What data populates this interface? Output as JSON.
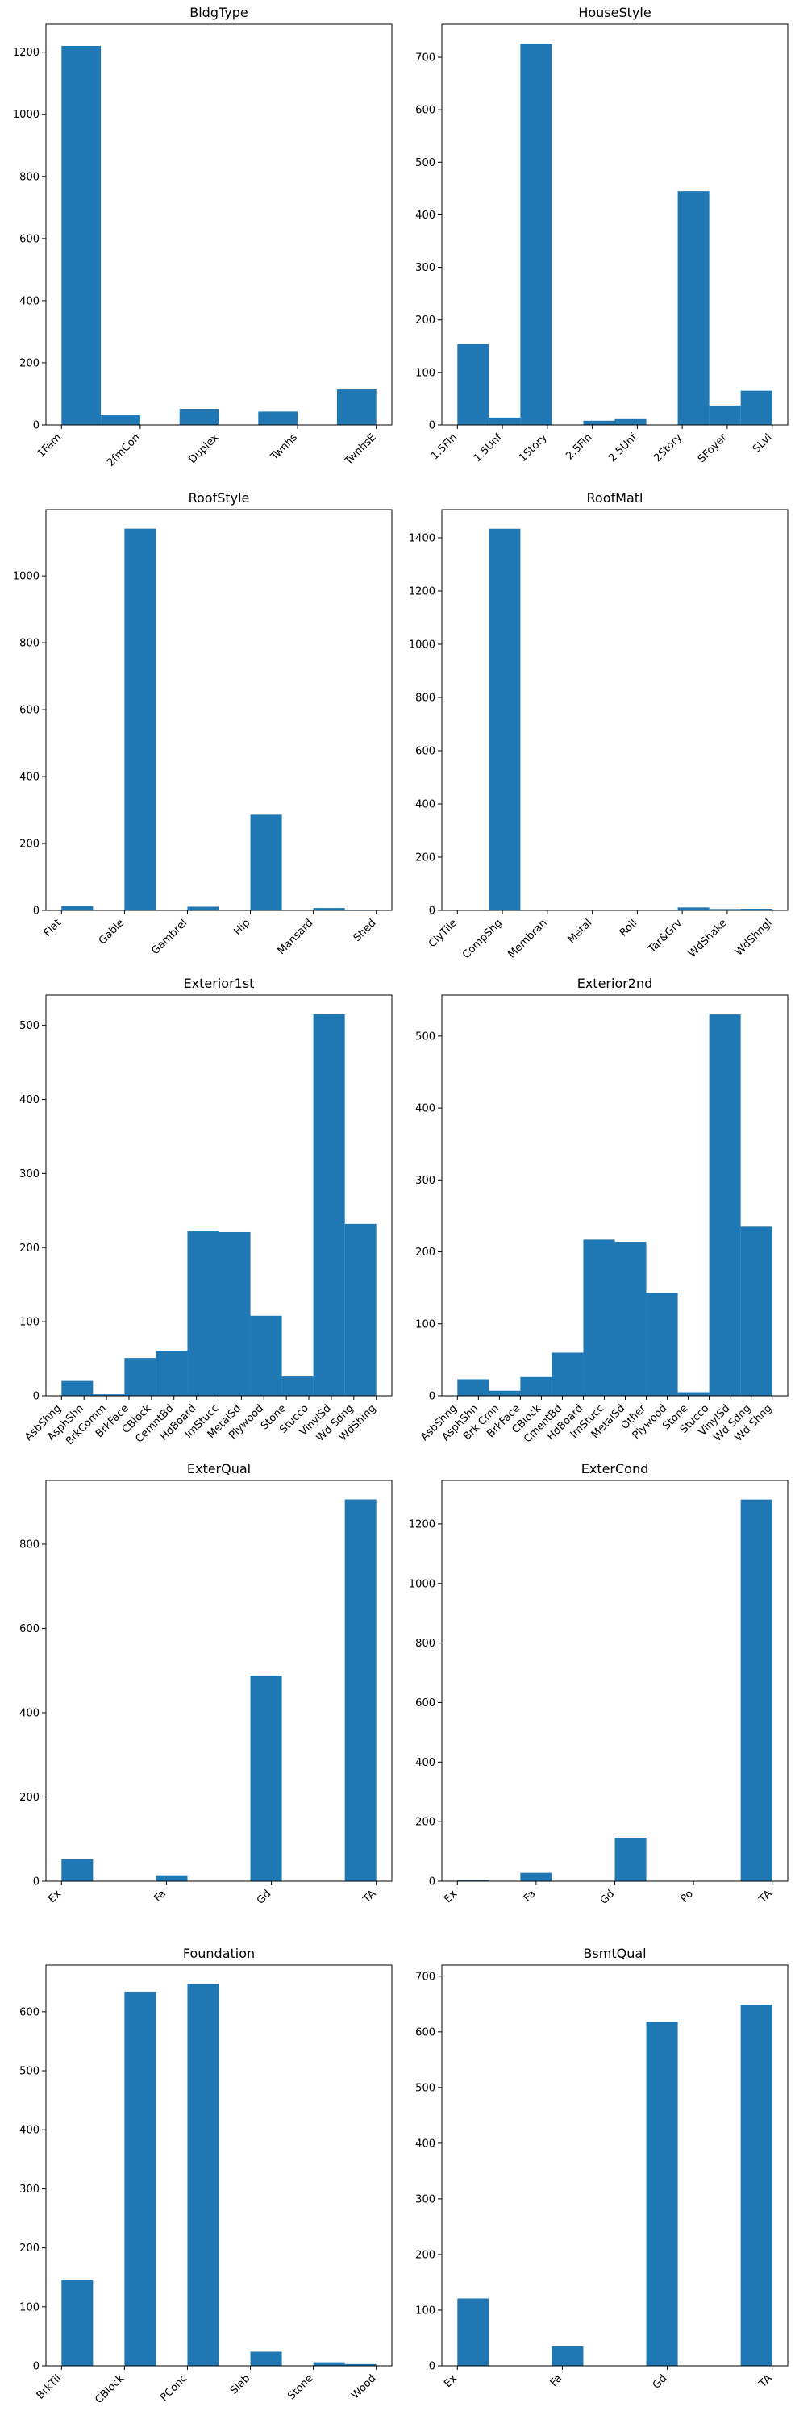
{
  "chart_data": [
    {
      "type": "bar",
      "title": "BldgType",
      "xlabel": "",
      "ylabel": "",
      "categories": [
        "1Fam",
        "2fmCon",
        "Duplex",
        "Twnhs",
        "TwnhsE"
      ],
      "bins": [
        {
          "count": 1220,
          "label": "1Fam"
        },
        {
          "count": 31,
          "label": "2fmCon"
        },
        {
          "count": 0,
          "label": ""
        },
        {
          "count": 52,
          "label": "Duplex"
        },
        {
          "count": 0,
          "label": ""
        },
        {
          "count": 43,
          "label": "Twnhs"
        },
        {
          "count": 0,
          "label": ""
        },
        {
          "count": 114,
          "label": "TwnhsE"
        }
      ],
      "ylim": [
        0,
        1290
      ],
      "yticks": [
        0,
        200,
        400,
        600,
        800,
        1000,
        1200
      ],
      "color": "#1f77b4"
    },
    {
      "type": "bar",
      "title": "HouseStyle",
      "xlabel": "",
      "ylabel": "",
      "categories": [
        "1.5Fin",
        "1.5Unf",
        "1Story",
        "2.5Fin",
        "2.5Unf",
        "2Story",
        "SFoyer",
        "SLvl"
      ],
      "bins": [
        {
          "count": 154,
          "label": "1.5Fin"
        },
        {
          "count": 14,
          "label": "1.5Unf"
        },
        {
          "count": 726,
          "label": "1Story"
        },
        {
          "count": 0,
          "label": ""
        },
        {
          "count": 8,
          "label": "2.5Fin"
        },
        {
          "count": 11,
          "label": "2.5Unf"
        },
        {
          "count": 0,
          "label": ""
        },
        {
          "count": 445,
          "label": "2Story"
        },
        {
          "count": 37,
          "label": "SFoyer"
        },
        {
          "count": 65,
          "label": "SLvl"
        }
      ],
      "ylim": [
        0,
        763
      ],
      "yticks": [
        0,
        100,
        200,
        300,
        400,
        500,
        600,
        700
      ],
      "color": "#1f77b4"
    },
    {
      "type": "bar",
      "title": "RoofStyle",
      "xlabel": "",
      "ylabel": "",
      "categories": [
        "Flat",
        "Gable",
        "Gambrel",
        "Hip",
        "Mansard",
        "Shed"
      ],
      "bins": [
        {
          "count": 13,
          "label": "Flat"
        },
        {
          "count": 0,
          "label": ""
        },
        {
          "count": 1141,
          "label": "Gable"
        },
        {
          "count": 0,
          "label": ""
        },
        {
          "count": 11,
          "label": "Gambrel"
        },
        {
          "count": 0,
          "label": ""
        },
        {
          "count": 286,
          "label": "Hip"
        },
        {
          "count": 0,
          "label": ""
        },
        {
          "count": 7,
          "label": "Mansard"
        },
        {
          "count": 2,
          "label": "Shed"
        }
      ],
      "ylim": [
        0,
        1198
      ],
      "yticks": [
        0,
        200,
        400,
        600,
        800,
        1000
      ],
      "color": "#1f77b4"
    },
    {
      "type": "bar",
      "title": "RoofMatl",
      "xlabel": "",
      "ylabel": "",
      "categories": [
        "ClyTile",
        "CompShg",
        "Membran",
        "Metal",
        "Roll",
        "Tar&Grv",
        "WdShake",
        "WdShngl"
      ],
      "bins": [
        {
          "count": 1,
          "label": "ClyTile"
        },
        {
          "count": 1434,
          "label": "CompShg"
        },
        {
          "count": 1,
          "label": "Membran"
        },
        {
          "count": 0,
          "label": ""
        },
        {
          "count": 1,
          "label": "Metal"
        },
        {
          "count": 1,
          "label": "Roll"
        },
        {
          "count": 0,
          "label": ""
        },
        {
          "count": 11,
          "label": "Tar&Grv"
        },
        {
          "count": 5,
          "label": "WdShake"
        },
        {
          "count": 6,
          "label": "WdShngl"
        }
      ],
      "ylim": [
        0,
        1506
      ],
      "yticks": [
        0,
        200,
        400,
        600,
        800,
        1000,
        1200,
        1400
      ],
      "color": "#1f77b4"
    },
    {
      "type": "bar",
      "title": "Exterior1st",
      "xlabel": "",
      "ylabel": "",
      "categories": [
        "AsbShng",
        "AsphShn",
        "BrkComm",
        "BrkFace",
        "CBlock",
        "CemntBd",
        "HdBoard",
        "ImStucc",
        "MetalSd",
        "Plywood",
        "Stone",
        "Stucco",
        "VinylSd",
        "Wd Sdng",
        "WdShing"
      ],
      "bins": [
        {
          "count": 20,
          "label": "AsbShng"
        },
        {
          "count": 2,
          "label": "AsphShn/BrkComm"
        },
        {
          "count": 51,
          "label": "BrkFace/CBlock"
        },
        {
          "count": 61,
          "label": "CemntBd"
        },
        {
          "count": 222,
          "label": "HdBoard/ImStucc"
        },
        {
          "count": 221,
          "label": "MetalSd"
        },
        {
          "count": 108,
          "label": "Plywood/Stone"
        },
        {
          "count": 26,
          "label": "Stucco"
        },
        {
          "count": 515,
          "label": "VinylSd"
        },
        {
          "count": 232,
          "label": "Wd Sdng/WdShing"
        }
      ],
      "ylim": [
        0,
        541
      ],
      "yticks": [
        0,
        100,
        200,
        300,
        400,
        500
      ],
      "color": "#1f77b4"
    },
    {
      "type": "bar",
      "title": "Exterior2nd",
      "xlabel": "",
      "ylabel": "",
      "categories": [
        "AsbShng",
        "AsphShn",
        "Brk Cmn",
        "BrkFace",
        "CBlock",
        "CmentBd",
        "HdBoard",
        "ImStucc",
        "MetalSd",
        "Other",
        "Plywood",
        "Stone",
        "Stucco",
        "VinylSd",
        "Wd Sdng",
        "Wd Shng"
      ],
      "bins": [
        {
          "count": 23,
          "label": "AsbShng"
        },
        {
          "count": 7,
          "label": "AsphShn/Brk Cmn"
        },
        {
          "count": 26,
          "label": "BrkFace/CBlock"
        },
        {
          "count": 60,
          "label": "CmentBd"
        },
        {
          "count": 217,
          "label": "HdBoard/ImStucc"
        },
        {
          "count": 214,
          "label": "MetalSd"
        },
        {
          "count": 143,
          "label": "Other/Plywood"
        },
        {
          "count": 5,
          "label": "Stone/Stucco"
        },
        {
          "count": 530,
          "label": "VinylSd"
        },
        {
          "count": 235,
          "label": "Wd Sdng/Wd Shng"
        }
      ],
      "ylim": [
        0,
        557
      ],
      "yticks": [
        0,
        100,
        200,
        300,
        400,
        500
      ],
      "color": "#1f77b4"
    },
    {
      "type": "bar",
      "title": "ExterQual",
      "xlabel": "",
      "ylabel": "",
      "categories": [
        "Ex",
        "Fa",
        "Gd",
        "TA"
      ],
      "bins": [
        {
          "count": 52,
          "label": "Ex"
        },
        {
          "count": 0,
          "label": ""
        },
        {
          "count": 0,
          "label": ""
        },
        {
          "count": 14,
          "label": "Fa"
        },
        {
          "count": 0,
          "label": ""
        },
        {
          "count": 0,
          "label": ""
        },
        {
          "count": 488,
          "label": "Gd"
        },
        {
          "count": 0,
          "label": ""
        },
        {
          "count": 0,
          "label": ""
        },
        {
          "count": 906,
          "label": "TA"
        }
      ],
      "ylim": [
        0,
        951
      ],
      "yticks": [
        0,
        200,
        400,
        600,
        800
      ],
      "color": "#1f77b4"
    },
    {
      "type": "bar",
      "title": "ExterCond",
      "xlabel": "",
      "ylabel": "",
      "categories": [
        "Ex",
        "Fa",
        "Gd",
        "Po",
        "TA"
      ],
      "bins": [
        {
          "count": 3,
          "label": "Ex"
        },
        {
          "count": 0,
          "label": ""
        },
        {
          "count": 28,
          "label": "Fa"
        },
        {
          "count": 0,
          "label": ""
        },
        {
          "count": 0,
          "label": ""
        },
        {
          "count": 146,
          "label": "Gd"
        },
        {
          "count": 0,
          "label": ""
        },
        {
          "count": 1,
          "label": "Po"
        },
        {
          "count": 0,
          "label": ""
        },
        {
          "count": 1282,
          "label": "TA"
        }
      ],
      "ylim": [
        0,
        1346
      ],
      "yticks": [
        0,
        200,
        400,
        600,
        800,
        1000,
        1200
      ],
      "color": "#1f77b4"
    },
    {
      "type": "bar",
      "title": "Foundation",
      "xlabel": "",
      "ylabel": "",
      "categories": [
        "BrkTil",
        "CBlock",
        "PConc",
        "Slab",
        "Stone",
        "Wood"
      ],
      "bins": [
        {
          "count": 146,
          "label": "BrkTil"
        },
        {
          "count": 0,
          "label": ""
        },
        {
          "count": 634,
          "label": "CBlock"
        },
        {
          "count": 0,
          "label": ""
        },
        {
          "count": 647,
          "label": "PConc"
        },
        {
          "count": 0,
          "label": ""
        },
        {
          "count": 24,
          "label": "Slab"
        },
        {
          "count": 0,
          "label": ""
        },
        {
          "count": 6,
          "label": "Stone"
        },
        {
          "count": 3,
          "label": "Wood"
        }
      ],
      "ylim": [
        0,
        679
      ],
      "yticks": [
        0,
        100,
        200,
        300,
        400,
        500,
        600
      ],
      "color": "#1f77b4"
    },
    {
      "type": "bar",
      "title": "BsmtQual",
      "xlabel": "",
      "ylabel": "",
      "categories": [
        "Ex",
        "Fa",
        "Gd",
        "TA"
      ],
      "bins": [
        {
          "count": 121,
          "label": "Ex"
        },
        {
          "count": 0,
          "label": ""
        },
        {
          "count": 0,
          "label": ""
        },
        {
          "count": 35,
          "label": "Fa"
        },
        {
          "count": 0,
          "label": ""
        },
        {
          "count": 0,
          "label": ""
        },
        {
          "count": 618,
          "label": "Gd"
        },
        {
          "count": 0,
          "label": ""
        },
        {
          "count": 0,
          "label": ""
        },
        {
          "count": 649,
          "label": "TA"
        }
      ],
      "ylim": [
        0,
        720
      ],
      "yticks": [
        0,
        100,
        200,
        300,
        400,
        500,
        600,
        700
      ],
      "color": "#1f77b4"
    }
  ]
}
